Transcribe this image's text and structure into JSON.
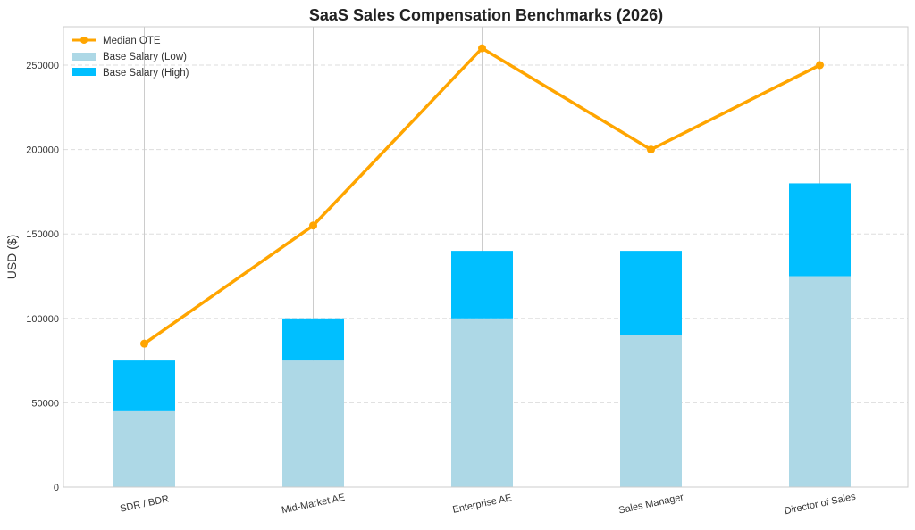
{
  "chart_data": {
    "type": "bar",
    "title": "SaaS Sales Compensation Benchmarks (2026)",
    "xlabel": "",
    "ylabel": "USD ($)",
    "ylim": [
      0,
      272000
    ],
    "yticks": [
      0,
      50000,
      100000,
      150000,
      200000,
      250000
    ],
    "ytick_labels": [
      "0",
      "50000",
      "100000",
      "150000",
      "200000",
      "250000"
    ],
    "categories": [
      "SDR / BDR",
      "Mid-Market AE",
      "Enterprise AE",
      "Sales Manager",
      "Director of Sales"
    ],
    "series": [
      {
        "name": "Base Salary (Low)",
        "type": "bar",
        "color": "#add8e6",
        "values": [
          45000,
          75000,
          100000,
          90000,
          125000
        ]
      },
      {
        "name": "Base Salary (High)",
        "type": "stacked-bar",
        "color": "#00bfff",
        "values": [
          75000,
          100000,
          140000,
          140000,
          180000
        ]
      },
      {
        "name": "Median OTE",
        "type": "line",
        "color": "#ffa500",
        "values": [
          85000,
          155000,
          260000,
          200000,
          250000
        ]
      }
    ],
    "legend": [
      "Median OTE",
      "Base Salary (Low)",
      "Base Salary (High)"
    ],
    "legend_position": "top-left",
    "grid": true
  }
}
